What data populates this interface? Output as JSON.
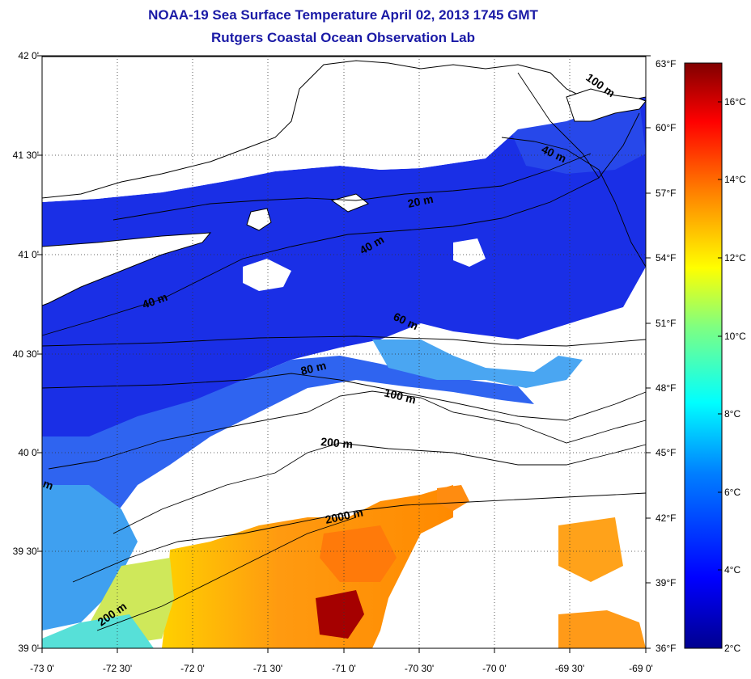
{
  "title": {
    "line1": "NOAA-19 Sea Surface Temperature April 02, 2013 1745 GMT",
    "line2": "Rutgers Coastal Ocean Observation Lab"
  },
  "map": {
    "lat_labels": [
      "42 0'",
      "41 30'",
      "41 0'",
      "40 30'",
      "40 0'",
      "39 30'",
      "39 0'"
    ],
    "lon_labels": [
      "-73 0'",
      "-72 30'",
      "-72 0'",
      "-71 30'",
      "-71 0'",
      "-70 30'",
      "-70 0'",
      "-69 30'",
      "-69 0'"
    ],
    "fahrenheit_labels": [
      "63°F",
      "60°F",
      "57°F",
      "54°F",
      "51°F",
      "48°F",
      "45°F",
      "42°F",
      "39°F",
      "36°F"
    ],
    "contour_labels": [
      "20 m",
      "40 m",
      "40 m",
      "40 m",
      "60 m",
      "80 m",
      "100 m",
      "200 m",
      "200 m",
      "2000 m",
      "100 m",
      "m"
    ]
  },
  "colorbar": {
    "celsius_labels": [
      "16°C",
      "14°C",
      "12°C",
      "10°C",
      "8°C",
      "6°C",
      "4°C",
      "2°C"
    ],
    "colors": [
      "#00008f",
      "#0000ff",
      "#0080ff",
      "#00ffff",
      "#80ff80",
      "#ffff00",
      "#ff8000",
      "#ff0000",
      "#800000"
    ]
  }
}
